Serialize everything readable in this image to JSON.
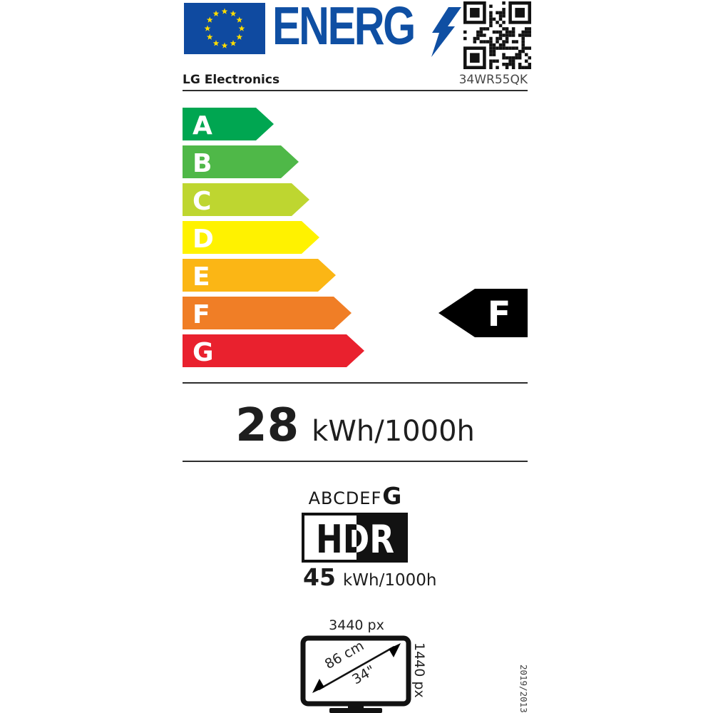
{
  "header": {
    "logo_text": "ENERG",
    "supplier": "LG Electronics",
    "model": "34WR55QK"
  },
  "scale": {
    "grades": [
      {
        "letter": "A",
        "color": "#00A651"
      },
      {
        "letter": "B",
        "color": "#4FB848"
      },
      {
        "letter": "C",
        "color": "#BED630"
      },
      {
        "letter": "D",
        "color": "#FFF200"
      },
      {
        "letter": "E",
        "color": "#FBB615"
      },
      {
        "letter": "F",
        "color": "#F07E26"
      },
      {
        "letter": "G",
        "color": "#E9212E"
      }
    ]
  },
  "rating": {
    "grade": "F",
    "color": "#000000"
  },
  "energy_sdr": {
    "value": "28",
    "unit": "kWh/1000h"
  },
  "hdr": {
    "range_prefix": "ABCDEF",
    "range_grade": "G",
    "logo": "HDR",
    "energy": {
      "value": "45",
      "unit": "kWh/1000h"
    }
  },
  "screen": {
    "width": "3440 px",
    "height": "1440 px",
    "diagonal_cm": "86 cm",
    "diagonal_inch": "34\""
  },
  "regulation": "2019/2013"
}
